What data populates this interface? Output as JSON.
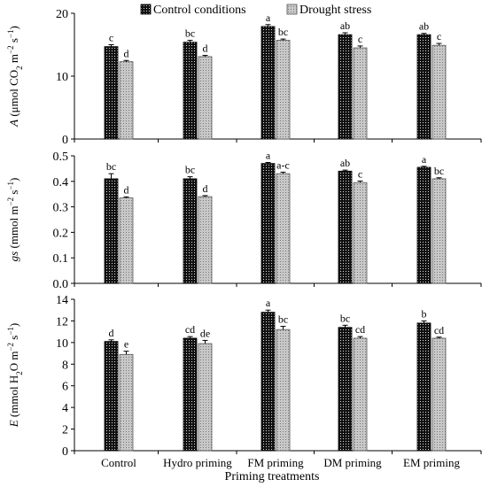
{
  "legend": {
    "control": "Control conditions",
    "drought": "Drought stress"
  },
  "xlabel": "Priming treatments",
  "chart_data": [
    {
      "type": "bar",
      "panel": "A",
      "ylabel_parts": [
        "A",
        " (μmol CO",
        "2",
        " m",
        "−2",
        " s",
        "−1",
        ")"
      ],
      "ylim": [
        0,
        20
      ],
      "yticks": [
        0,
        10,
        20
      ],
      "tick_labels": [
        "0",
        "10",
        "20"
      ],
      "categories": [
        "Control",
        "Hydro priming",
        "FM priming",
        "DM priming",
        "EM priming"
      ],
      "series": [
        {
          "name": "Control conditions",
          "values": [
            14.7,
            15.4,
            17.9,
            16.6,
            16.6
          ],
          "errors": [
            0.3,
            0.3,
            0.3,
            0.3,
            0.2
          ],
          "letters": [
            "c",
            "bc",
            "a",
            "ab",
            "ab"
          ]
        },
        {
          "name": "Drought stress",
          "values": [
            12.3,
            13.1,
            15.7,
            14.5,
            14.9
          ],
          "errors": [
            0.2,
            0.2,
            0.2,
            0.3,
            0.3
          ],
          "letters": [
            "d",
            "d",
            "bc",
            "c",
            "c"
          ]
        }
      ]
    },
    {
      "type": "bar",
      "panel": "gs",
      "ylabel_parts": [
        "gs",
        " (mmol m",
        "−2",
        " s",
        "−1",
        ")"
      ],
      "ylim": [
        0,
        0.5
      ],
      "yticks": [
        0,
        0.1,
        0.2,
        0.3,
        0.4,
        0.5
      ],
      "tick_labels": [
        "0.0",
        "0.1",
        "0.2",
        "0.3",
        "0.4",
        "0.5"
      ],
      "categories": [
        "Control",
        "Hydro priming",
        "FM priming",
        "DM priming",
        "EM priming"
      ],
      "series": [
        {
          "name": "Control conditions",
          "values": [
            0.41,
            0.41,
            0.47,
            0.44,
            0.455
          ],
          "errors": [
            0.02,
            0.008,
            0.004,
            0.004,
            0.004
          ],
          "letters": [
            "bc",
            "bc",
            "a",
            "ab",
            "a"
          ]
        },
        {
          "name": "Drought stress",
          "values": [
            0.335,
            0.34,
            0.43,
            0.395,
            0.41
          ],
          "errors": [
            0.004,
            0.004,
            0.006,
            0.006,
            0.004
          ],
          "letters": [
            "d",
            "d",
            "a-c",
            "c",
            "bc"
          ]
        }
      ]
    },
    {
      "type": "bar",
      "panel": "E",
      "ylabel_parts": [
        "E",
        " (mmol H",
        "2",
        "O m",
        "−2",
        " s",
        "−1",
        ")"
      ],
      "ylim": [
        0,
        14
      ],
      "yticks": [
        0,
        2,
        4,
        6,
        8,
        10,
        12,
        14
      ],
      "tick_labels": [
        "0",
        "2",
        "4",
        "6",
        "8",
        "10",
        "12",
        "14"
      ],
      "categories": [
        "Control",
        "Hydro priming",
        "FM priming",
        "DM priming",
        "EM priming"
      ],
      "series": [
        {
          "name": "Control conditions",
          "values": [
            10.1,
            10.4,
            12.8,
            11.4,
            11.8
          ],
          "errors": [
            0.15,
            0.15,
            0.2,
            0.2,
            0.2
          ],
          "letters": [
            "d",
            "cd",
            "a",
            "bc",
            "b"
          ]
        },
        {
          "name": "Drought stress",
          "values": [
            8.9,
            9.9,
            11.2,
            10.4,
            10.4
          ],
          "errors": [
            0.3,
            0.3,
            0.3,
            0.15,
            0.1
          ],
          "letters": [
            "e",
            "de",
            "bc",
            "cd",
            "cd"
          ]
        }
      ]
    }
  ]
}
